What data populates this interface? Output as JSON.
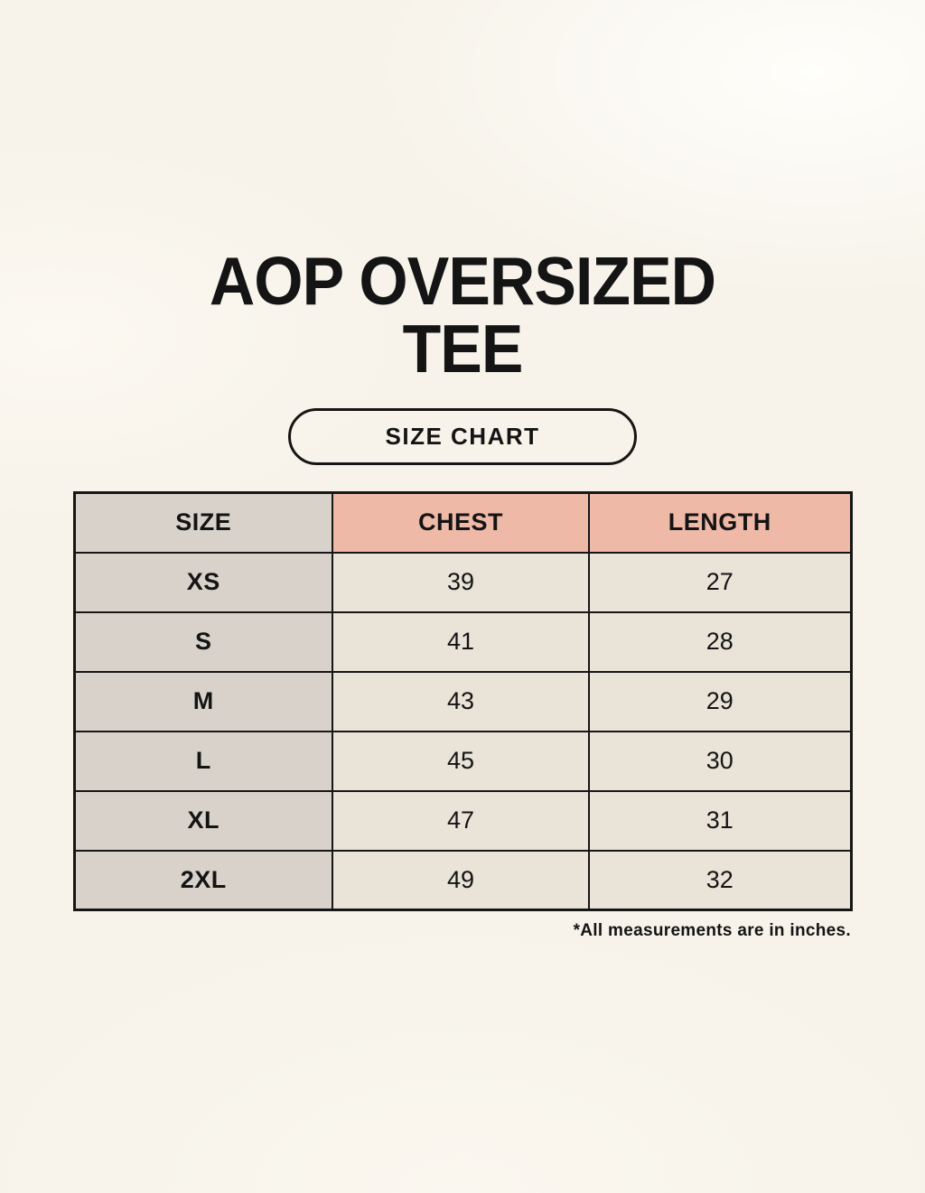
{
  "header": {
    "title": "AOP OVERSIZED TEE"
  },
  "size_chart_button": {
    "label": "SIZE CHART"
  },
  "table": {
    "headers": [
      "SIZE",
      "CHEST",
      "LENGTH"
    ],
    "rows": [
      {
        "size": "XS",
        "chest": "39",
        "length": "27"
      },
      {
        "size": "S",
        "chest": "41",
        "length": "28"
      },
      {
        "size": "M",
        "chest": "43",
        "length": "29"
      },
      {
        "size": "L",
        "chest": "45",
        "length": "30"
      },
      {
        "size": "XL",
        "chest": "47",
        "length": "31"
      },
      {
        "size": "2XL",
        "chest": "49",
        "length": "32"
      }
    ]
  },
  "footnote": "*All measurements are in inches.",
  "colors": {
    "page-bg": "#f7f3ea",
    "header-accent": "#efb9a8",
    "size-column-bg": "#d9d2cb",
    "cell-bg": "#e9e3d8",
    "border": "#161616",
    "text": "#141414"
  }
}
